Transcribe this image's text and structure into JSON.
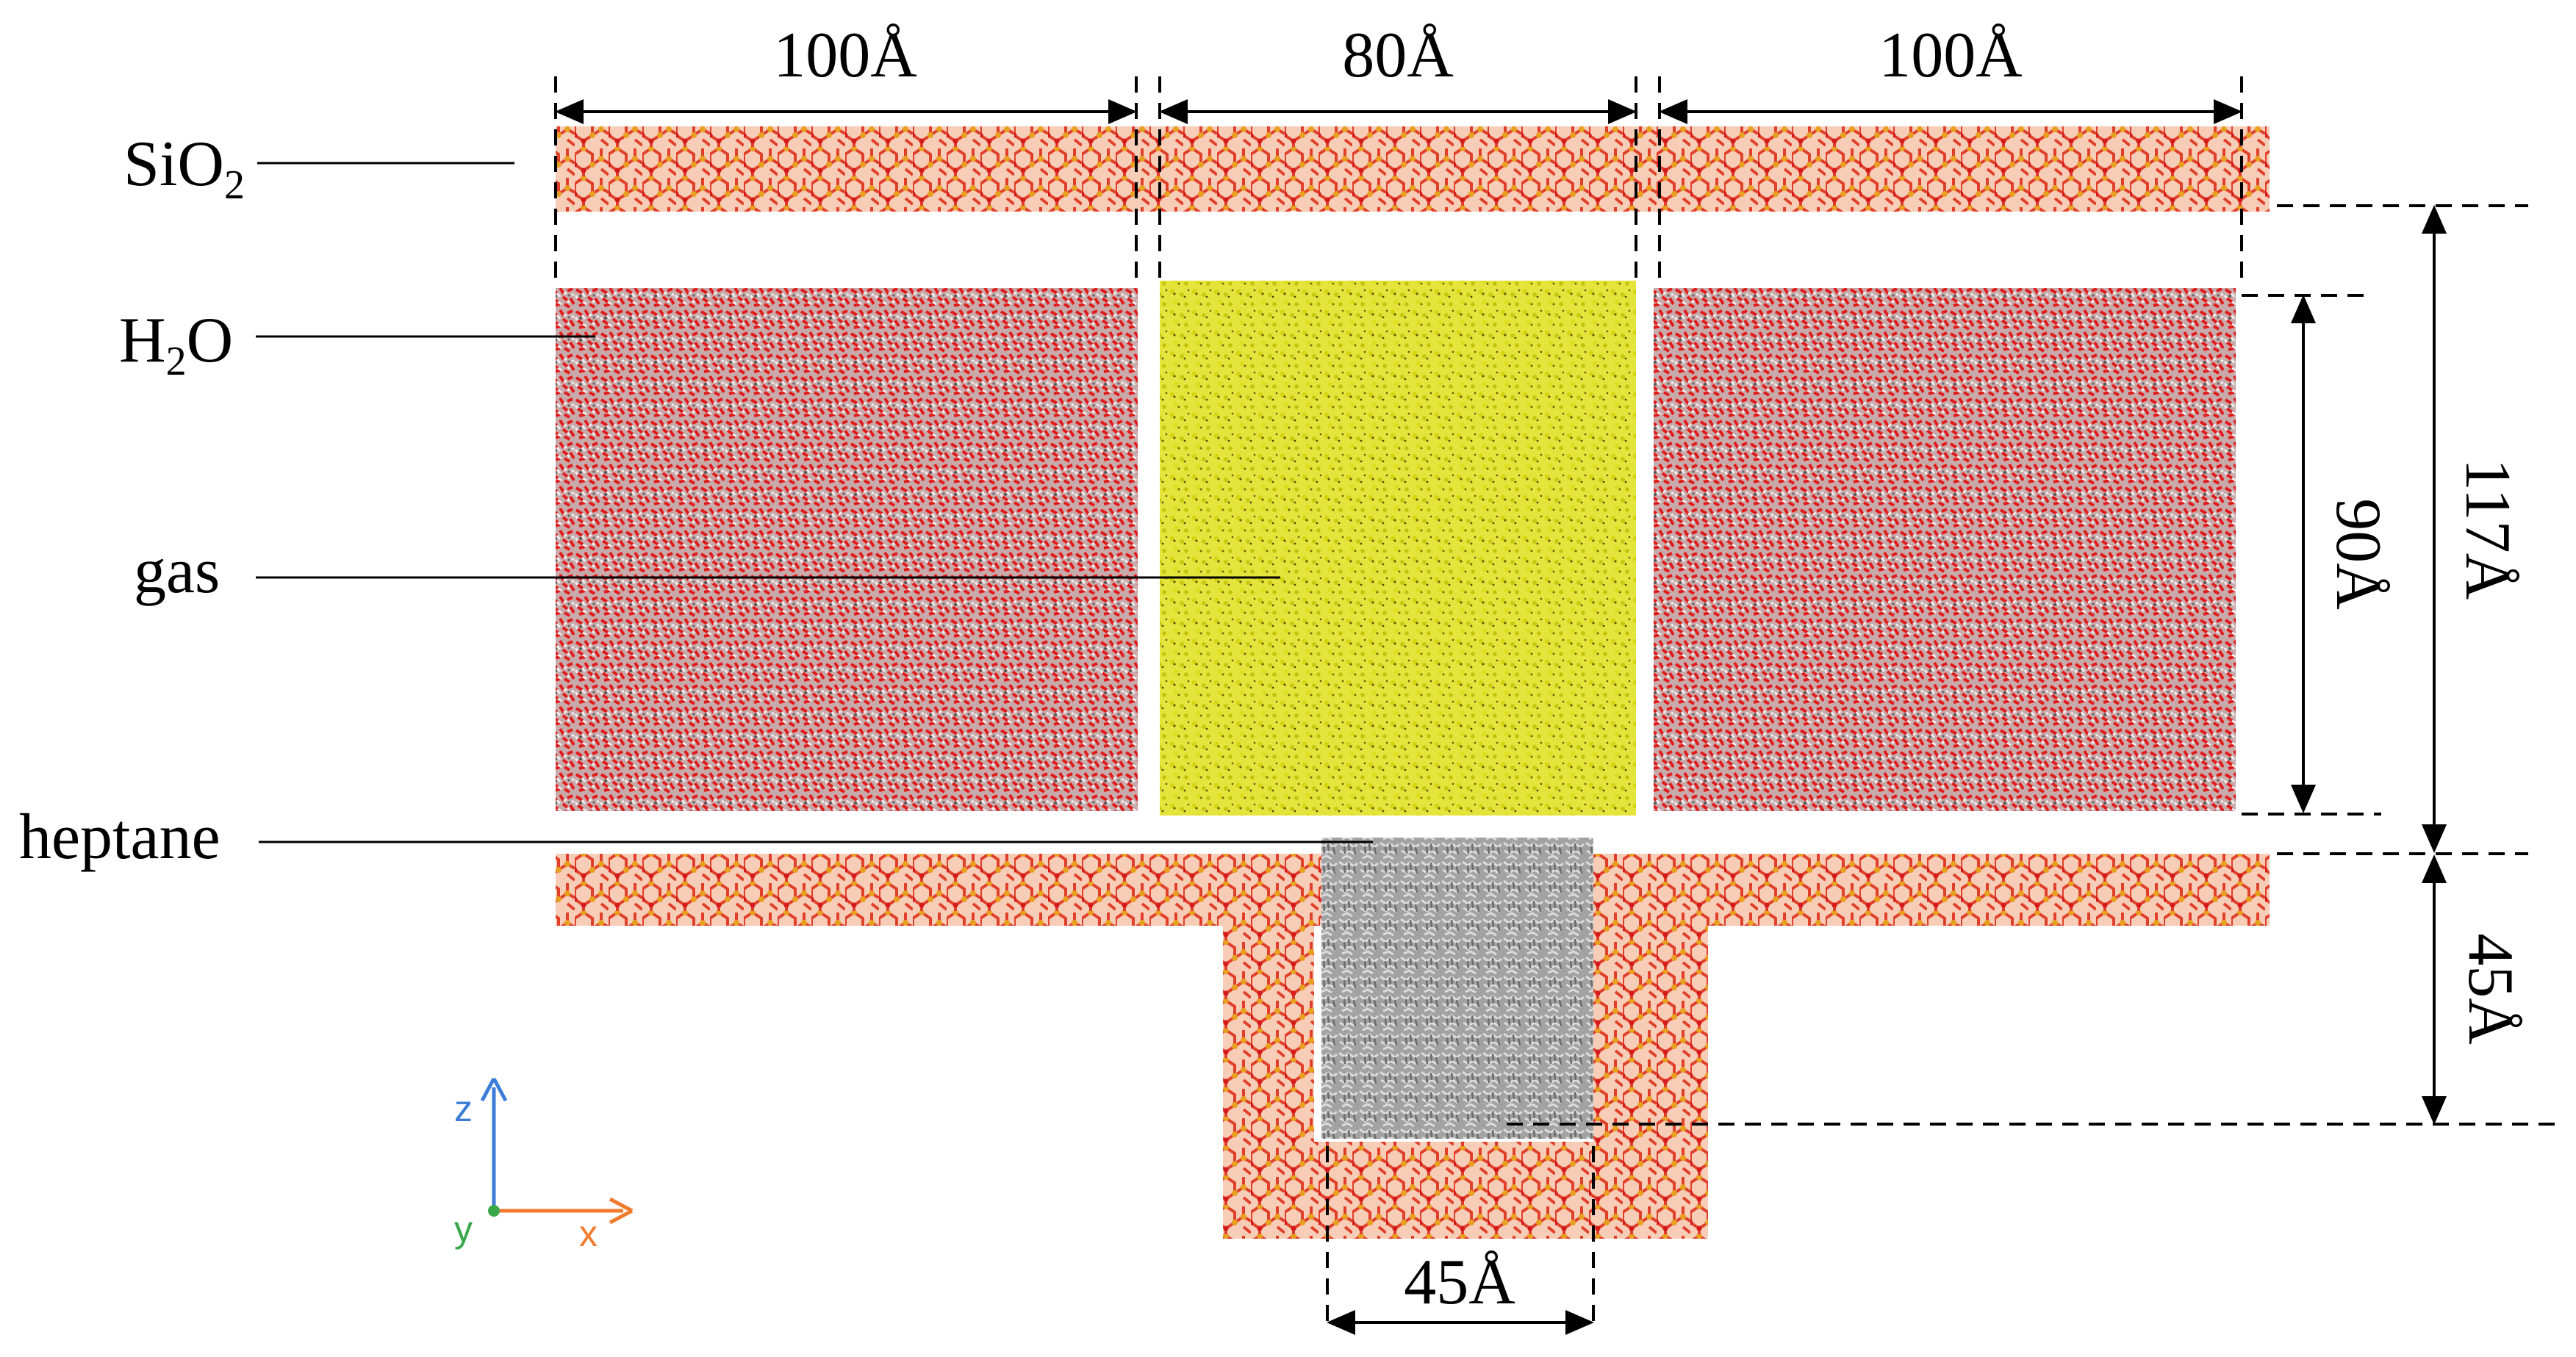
{
  "labels": {
    "sio2": "SiO",
    "sio2_sub": "2",
    "h2o_h": "H",
    "h2o_sub": "2",
    "h2o_o": "O",
    "gas": "gas",
    "heptane": "heptane"
  },
  "dimensions": {
    "top_left": "100Å",
    "top_middle": "80Å",
    "top_right": "100Å",
    "right_outer": "117Å",
    "right_inner": "90Å",
    "right_lower": "45Å",
    "bottom": "45Å"
  },
  "axes": {
    "x": "x",
    "y": "y",
    "z": "z"
  },
  "colors": {
    "silica_base": "#f6c7b2",
    "silica_pattern": "#e0402a",
    "water_base": "#c9aaaa",
    "water_red": "#e01b1b",
    "water_white": "#e8e8e8",
    "gas_base": "#e2e23a",
    "gas_dark": "#6b6b00",
    "heptane_base": "#9a9a9a",
    "heptane_light": "#d4d4d4",
    "axis_z": "#3b7dd8",
    "axis_x": "#f07b2e",
    "axis_y": "#3aa64a"
  }
}
